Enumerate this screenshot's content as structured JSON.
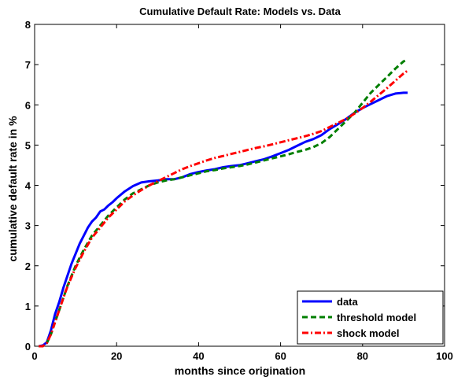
{
  "chart_data": {
    "type": "line",
    "title": "Cumulative Default Rate: Models vs. Data",
    "xlabel": "months since origination",
    "ylabel": "cumulative default rate in %",
    "xlim": [
      0,
      100
    ],
    "ylim": [
      0,
      8
    ],
    "xticks": [
      "0",
      "20",
      "40",
      "60",
      "80",
      "100"
    ],
    "yticks": [
      "0",
      "1",
      "2",
      "3",
      "4",
      "5",
      "6",
      "7",
      "8"
    ],
    "grid": false,
    "legend_position": "bottom-right",
    "series": [
      {
        "name": "data",
        "color": "#0000ff",
        "style": "solid",
        "points": [
          [
            1,
            0
          ],
          [
            2,
            0.02
          ],
          [
            3,
            0.1
          ],
          [
            4,
            0.4
          ],
          [
            5,
            0.8
          ],
          [
            6,
            1.1
          ],
          [
            7,
            1.45
          ],
          [
            8,
            1.75
          ],
          [
            9,
            2.05
          ],
          [
            10,
            2.3
          ],
          [
            11,
            2.55
          ],
          [
            12,
            2.75
          ],
          [
            13,
            2.95
          ],
          [
            14,
            3.1
          ],
          [
            15,
            3.2
          ],
          [
            16,
            3.35
          ],
          [
            17,
            3.4
          ],
          [
            18,
            3.5
          ],
          [
            19,
            3.58
          ],
          [
            20,
            3.68
          ],
          [
            22,
            3.85
          ],
          [
            24,
            3.98
          ],
          [
            26,
            4.07
          ],
          [
            28,
            4.1
          ],
          [
            30,
            4.12
          ],
          [
            32,
            4.15
          ],
          [
            34,
            4.15
          ],
          [
            36,
            4.2
          ],
          [
            38,
            4.28
          ],
          [
            40,
            4.33
          ],
          [
            42,
            4.37
          ],
          [
            44,
            4.4
          ],
          [
            46,
            4.45
          ],
          [
            48,
            4.48
          ],
          [
            50,
            4.5
          ],
          [
            52,
            4.55
          ],
          [
            54,
            4.6
          ],
          [
            56,
            4.65
          ],
          [
            58,
            4.72
          ],
          [
            60,
            4.8
          ],
          [
            62,
            4.88
          ],
          [
            64,
            4.98
          ],
          [
            66,
            5.08
          ],
          [
            68,
            5.15
          ],
          [
            70,
            5.25
          ],
          [
            72,
            5.4
          ],
          [
            74,
            5.52
          ],
          [
            76,
            5.65
          ],
          [
            78,
            5.8
          ],
          [
            80,
            5.92
          ],
          [
            82,
            6.02
          ],
          [
            84,
            6.12
          ],
          [
            86,
            6.22
          ],
          [
            88,
            6.28
          ],
          [
            90,
            6.3
          ],
          [
            91,
            6.3
          ]
        ]
      },
      {
        "name": "threshold model",
        "color": "#007f00",
        "style": "dashed",
        "points": [
          [
            1,
            0
          ],
          [
            2,
            0
          ],
          [
            3,
            0.08
          ],
          [
            4,
            0.3
          ],
          [
            5,
            0.6
          ],
          [
            6,
            0.9
          ],
          [
            7,
            1.2
          ],
          [
            8,
            1.5
          ],
          [
            9,
            1.75
          ],
          [
            10,
            2.0
          ],
          [
            12,
            2.4
          ],
          [
            14,
            2.75
          ],
          [
            16,
            3.0
          ],
          [
            18,
            3.25
          ],
          [
            20,
            3.45
          ],
          [
            22,
            3.65
          ],
          [
            24,
            3.8
          ],
          [
            26,
            3.9
          ],
          [
            28,
            4.0
          ],
          [
            30,
            4.07
          ],
          [
            32,
            4.12
          ],
          [
            34,
            4.15
          ],
          [
            36,
            4.2
          ],
          [
            38,
            4.25
          ],
          [
            40,
            4.3
          ],
          [
            42,
            4.35
          ],
          [
            44,
            4.38
          ],
          [
            46,
            4.42
          ],
          [
            48,
            4.45
          ],
          [
            50,
            4.48
          ],
          [
            52,
            4.52
          ],
          [
            54,
            4.57
          ],
          [
            56,
            4.62
          ],
          [
            58,
            4.67
          ],
          [
            60,
            4.72
          ],
          [
            62,
            4.77
          ],
          [
            64,
            4.83
          ],
          [
            66,
            4.88
          ],
          [
            68,
            4.95
          ],
          [
            70,
            5.05
          ],
          [
            72,
            5.2
          ],
          [
            74,
            5.4
          ],
          [
            76,
            5.6
          ],
          [
            78,
            5.8
          ],
          [
            80,
            6.05
          ],
          [
            82,
            6.3
          ],
          [
            84,
            6.5
          ],
          [
            86,
            6.7
          ],
          [
            88,
            6.9
          ],
          [
            90,
            7.08
          ],
          [
            91,
            7.12
          ]
        ]
      },
      {
        "name": "shock model",
        "color": "#ff0000",
        "style": "dashdot",
        "points": [
          [
            1,
            0
          ],
          [
            2,
            0
          ],
          [
            3,
            0.08
          ],
          [
            4,
            0.3
          ],
          [
            5,
            0.6
          ],
          [
            6,
            0.9
          ],
          [
            7,
            1.2
          ],
          [
            8,
            1.48
          ],
          [
            9,
            1.72
          ],
          [
            10,
            1.95
          ],
          [
            12,
            2.35
          ],
          [
            14,
            2.7
          ],
          [
            16,
            2.95
          ],
          [
            18,
            3.2
          ],
          [
            20,
            3.4
          ],
          [
            22,
            3.6
          ],
          [
            24,
            3.75
          ],
          [
            26,
            3.88
          ],
          [
            28,
            4.0
          ],
          [
            30,
            4.1
          ],
          [
            32,
            4.2
          ],
          [
            34,
            4.3
          ],
          [
            36,
            4.4
          ],
          [
            38,
            4.48
          ],
          [
            40,
            4.55
          ],
          [
            42,
            4.62
          ],
          [
            44,
            4.68
          ],
          [
            46,
            4.73
          ],
          [
            48,
            4.78
          ],
          [
            50,
            4.83
          ],
          [
            52,
            4.88
          ],
          [
            54,
            4.93
          ],
          [
            56,
            4.97
          ],
          [
            58,
            5.02
          ],
          [
            60,
            5.07
          ],
          [
            62,
            5.12
          ],
          [
            64,
            5.17
          ],
          [
            66,
            5.22
          ],
          [
            68,
            5.28
          ],
          [
            70,
            5.35
          ],
          [
            72,
            5.45
          ],
          [
            74,
            5.55
          ],
          [
            76,
            5.65
          ],
          [
            78,
            5.78
          ],
          [
            80,
            5.92
          ],
          [
            82,
            6.08
          ],
          [
            84,
            6.25
          ],
          [
            86,
            6.42
          ],
          [
            88,
            6.6
          ],
          [
            90,
            6.78
          ],
          [
            91,
            6.85
          ]
        ]
      }
    ]
  }
}
